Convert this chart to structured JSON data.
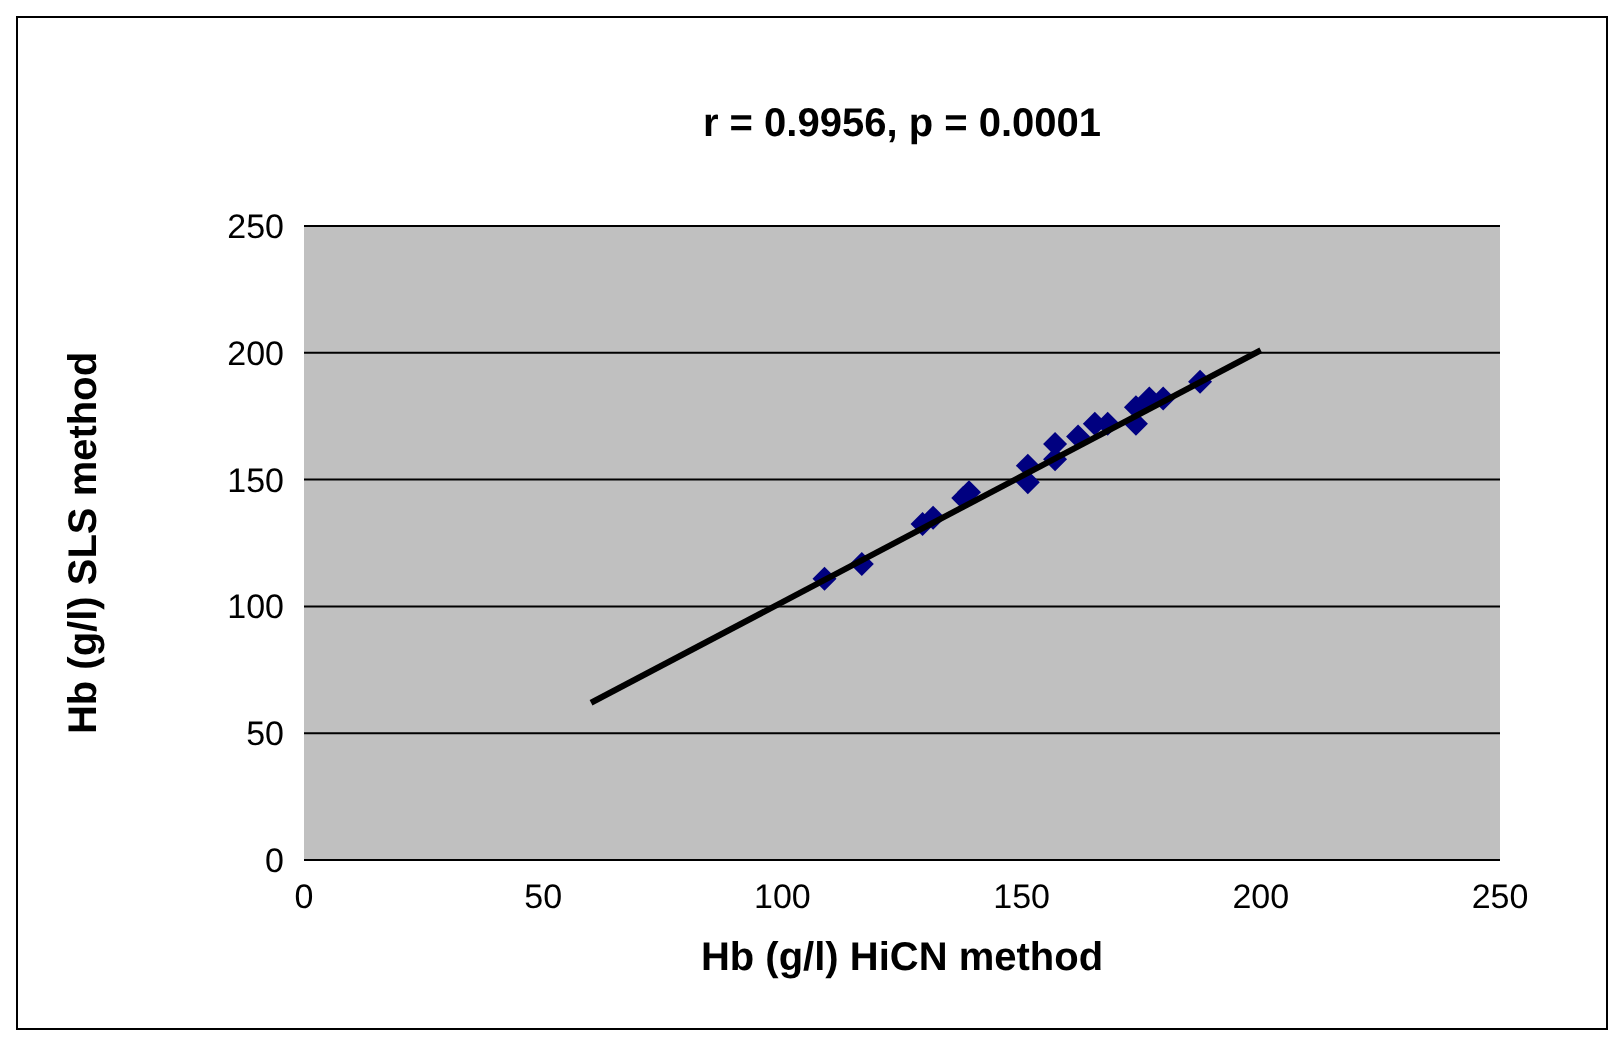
{
  "chart_data": {
    "type": "scatter",
    "title": "r = 0.9956, p = 0.0001",
    "xlabel": "Hb (g/l) HiCN method",
    "ylabel": "Hb (g/l) SLS method",
    "xlim": [
      0,
      250
    ],
    "xticks": [
      0,
      50,
      100,
      150,
      200,
      250
    ],
    "ylim": [
      0,
      250
    ],
    "yticks": [
      0,
      50,
      100,
      150,
      200,
      250
    ],
    "grid": "y",
    "series": [
      {
        "marker": "diamond",
        "color": "#000080",
        "x": [
          108.8,
          116.6,
          129.3,
          131.5,
          137.8,
          139,
          151.3,
          151.3,
          157,
          157,
          161.8,
          165.3,
          168,
          173.9,
          173.9,
          176.7,
          179.6,
          187.3
        ],
        "values": [
          110.9,
          116.7,
          132.5,
          135,
          142.7,
          145,
          149,
          155.5,
          158,
          164,
          167,
          172,
          172,
          172,
          178.5,
          182,
          182,
          188.6
        ]
      },
      {
        "type": "line",
        "color": "#000000",
        "x": [
          60,
          200
        ],
        "values": [
          62,
          201
        ]
      }
    ]
  }
}
